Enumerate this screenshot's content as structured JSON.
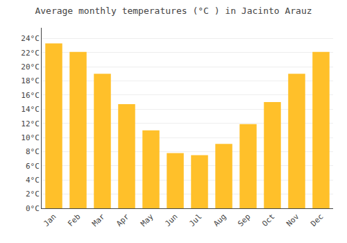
{
  "chart_data": {
    "type": "bar",
    "title": "Average monthly temperatures (°C ) in Jacinto Arauz",
    "categories": [
      "Jan",
      "Feb",
      "Mar",
      "Apr",
      "May",
      "Jun",
      "Jul",
      "Aug",
      "Sep",
      "Oct",
      "Nov",
      "Dec"
    ],
    "values": [
      23.3,
      22.1,
      19.0,
      14.7,
      11.0,
      7.8,
      7.5,
      9.1,
      11.9,
      15.0,
      19.0,
      22.1
    ],
    "color": "#FFC02A",
    "ylim": [
      0,
      25.5
    ],
    "yticks": [
      {
        "value": 0,
        "label": "0°C"
      },
      {
        "value": 2,
        "label": "2°C"
      },
      {
        "value": 4,
        "label": "4°C"
      },
      {
        "value": 6,
        "label": "6°C"
      },
      {
        "value": 8,
        "label": "8°C"
      },
      {
        "value": 10,
        "label": "10°C"
      },
      {
        "value": 12,
        "label": "12°C"
      },
      {
        "value": 14,
        "label": "14°C"
      },
      {
        "value": 16,
        "label": "16°C"
      },
      {
        "value": 18,
        "label": "18°C"
      },
      {
        "value": 20,
        "label": "20°C"
      },
      {
        "value": 22,
        "label": "22°C"
      },
      {
        "value": 24,
        "label": "24°C"
      }
    ],
    "grid": true
  }
}
